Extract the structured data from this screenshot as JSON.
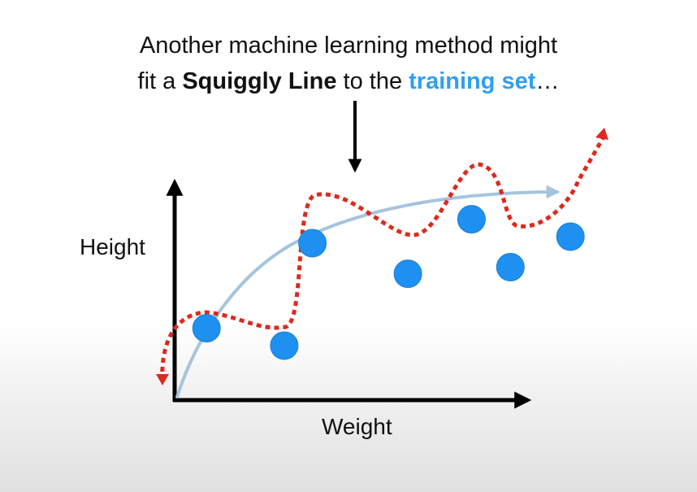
{
  "caption": {
    "line1": "Another machine learning method might",
    "line2_before": "fit a ",
    "line2_bold": "Squiggly Line",
    "line2_middle": " to the ",
    "line2_accent": "training set",
    "line2_after": "…"
  },
  "axes": {
    "y_label": "Height",
    "x_label": "Weight"
  },
  "colors": {
    "text": "#111111",
    "accent_blue": "#2f9ff4",
    "point_fill": "#1e90f0",
    "point_stroke": "#1a7fd6",
    "smooth_curve": "#a6c4dc",
    "squiggly_line": "#dd2a1e",
    "axis": "#000000"
  },
  "training_points": [
    {
      "weight": 0.09,
      "height": 0.33
    },
    {
      "weight": 0.31,
      "height": 0.25
    },
    {
      "weight": 0.39,
      "height": 0.72
    },
    {
      "weight": 0.66,
      "height": 0.58
    },
    {
      "weight": 0.84,
      "height": 0.83
    },
    {
      "weight": 0.95,
      "height": 0.61
    },
    {
      "weight": 1.12,
      "height": 0.75
    }
  ]
}
